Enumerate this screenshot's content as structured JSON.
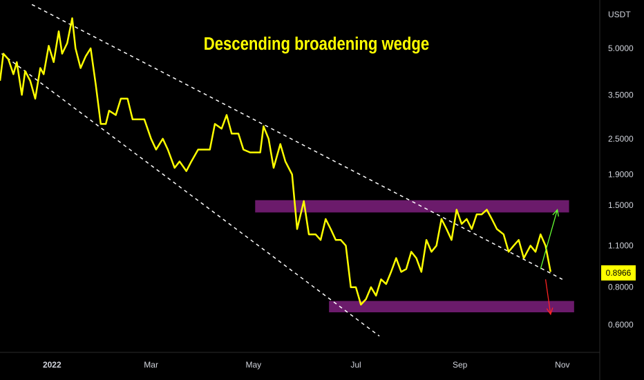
{
  "chart_data": {
    "type": "line",
    "title": "Descending broadening wedge",
    "y_unit": "USDT",
    "y_scale": "log",
    "ylim": [
      0.5,
      6.5
    ],
    "y_ticks": [
      "5.0000",
      "3.5000",
      "2.5000",
      "1.9000",
      "1.5000",
      "1.1000",
      "0.8000",
      "0.6000"
    ],
    "x_ticks": [
      "2022",
      "Mar",
      "May",
      "Jul",
      "Sep",
      "Nov"
    ],
    "x_start": "2021-12-01",
    "x_end": "2022-11-20",
    "last_price": "0.8966",
    "series": [
      {
        "color": "#ffff00",
        "x": [
          "2021-12-01",
          "2021-12-03",
          "2021-12-06",
          "2021-12-09",
          "2021-12-11",
          "2021-12-14",
          "2021-12-16",
          "2021-12-19",
          "2021-12-22",
          "2021-12-25",
          "2021-12-27",
          "2021-12-30",
          "2022-01-02",
          "2022-01-05",
          "2022-01-07",
          "2022-01-10",
          "2022-01-13",
          "2022-01-15",
          "2022-01-18",
          "2022-01-21",
          "2022-01-24",
          "2022-01-27",
          "2022-01-30",
          "2022-02-02",
          "2022-02-04",
          "2022-02-08",
          "2022-02-11",
          "2022-02-15",
          "2022-02-18",
          "2022-02-22",
          "2022-02-25",
          "2022-03-01",
          "2022-03-04",
          "2022-03-08",
          "2022-03-11",
          "2022-03-15",
          "2022-03-18",
          "2022-03-22",
          "2022-03-25",
          "2022-03-29",
          "2022-04-01",
          "2022-04-05",
          "2022-04-08",
          "2022-04-12",
          "2022-04-15",
          "2022-04-18",
          "2022-04-22",
          "2022-04-25",
          "2022-04-29",
          "2022-05-02",
          "2022-05-05",
          "2022-05-07",
          "2022-05-10",
          "2022-05-13",
          "2022-05-17",
          "2022-05-20",
          "2022-05-24",
          "2022-05-27",
          "2022-05-31",
          "2022-06-03",
          "2022-06-07",
          "2022-06-10",
          "2022-06-13",
          "2022-06-16",
          "2022-06-19",
          "2022-06-22",
          "2022-06-25",
          "2022-06-28",
          "2022-07-01",
          "2022-07-04",
          "2022-07-07",
          "2022-07-10",
          "2022-07-13",
          "2022-07-16",
          "2022-07-19",
          "2022-07-22",
          "2022-07-25",
          "2022-07-28",
          "2022-07-31",
          "2022-08-03",
          "2022-08-06",
          "2022-08-09",
          "2022-08-12",
          "2022-08-15",
          "2022-08-18",
          "2022-08-21",
          "2022-08-24",
          "2022-08-27",
          "2022-08-30",
          "2022-09-02",
          "2022-09-05",
          "2022-09-08",
          "2022-09-11",
          "2022-09-14",
          "2022-09-17",
          "2022-09-20",
          "2022-09-23",
          "2022-09-27",
          "2022-09-30",
          "2022-10-03",
          "2022-10-06",
          "2022-10-09",
          "2022-10-13",
          "2022-10-16",
          "2022-10-19",
          "2022-10-22",
          "2022-10-25"
        ],
        "y": [
          3.9,
          4.8,
          4.6,
          4.1,
          4.5,
          3.5,
          4.2,
          3.9,
          3.4,
          4.3,
          4.1,
          5.1,
          4.5,
          5.7,
          4.8,
          5.2,
          6.3,
          5.0,
          4.3,
          4.7,
          5.0,
          3.8,
          2.8,
          2.8,
          3.1,
          3.0,
          3.4,
          3.4,
          2.9,
          2.9,
          2.9,
          2.5,
          2.3,
          2.5,
          2.3,
          2.0,
          2.1,
          1.95,
          2.1,
          2.3,
          2.3,
          2.3,
          2.8,
          2.7,
          3.0,
          2.6,
          2.6,
          2.3,
          2.25,
          2.25,
          2.25,
          2.75,
          2.5,
          2.0,
          2.4,
          2.1,
          1.9,
          1.25,
          1.55,
          1.2,
          1.2,
          1.15,
          1.35,
          1.25,
          1.15,
          1.15,
          1.1,
          0.8,
          0.8,
          0.7,
          0.73,
          0.8,
          0.75,
          0.85,
          0.82,
          0.9,
          1.0,
          0.9,
          0.92,
          1.05,
          1.0,
          0.9,
          1.15,
          1.05,
          1.1,
          1.35,
          1.25,
          1.15,
          1.45,
          1.3,
          1.35,
          1.25,
          1.4,
          1.4,
          1.45,
          1.35,
          1.25,
          1.2,
          1.05,
          1.1,
          1.15,
          1.0,
          1.1,
          1.05,
          1.2,
          1.1,
          0.9
        ]
      }
    ],
    "zones": [
      {
        "color": "#6b1b6b",
        "y_low": 1.42,
        "y_high": 1.56,
        "x_start": "2022-05-02",
        "x_end": "2022-11-05"
      },
      {
        "color": "#6b1b6b",
        "y_low": 0.66,
        "y_high": 0.72,
        "x_start": "2022-06-15",
        "x_end": "2022-11-08"
      }
    ],
    "trendlines": [
      {
        "style": "dashed",
        "color": "#ffffff",
        "x1": "2021-12-20",
        "y1": 7.0,
        "x2": "2022-11-01",
        "y2": 0.85
      },
      {
        "style": "dashed",
        "color": "#ffffff",
        "x1": "2021-12-02",
        "y1": 4.8,
        "x2": "2022-07-15",
        "y2": 0.55
      }
    ],
    "arrows": [
      {
        "color": "#66ff33",
        "from": [
          "2022-10-19",
          0.92
        ],
        "to": [
          "2022-10-29",
          1.45
        ]
      },
      {
        "color": "#ff2222",
        "from": [
          "2022-10-22",
          0.85
        ],
        "to": [
          "2022-10-25",
          0.65
        ]
      }
    ]
  },
  "axis": {
    "currency": "USDT"
  },
  "title": "Descending broadening wedge",
  "price_tag": "0.8966"
}
